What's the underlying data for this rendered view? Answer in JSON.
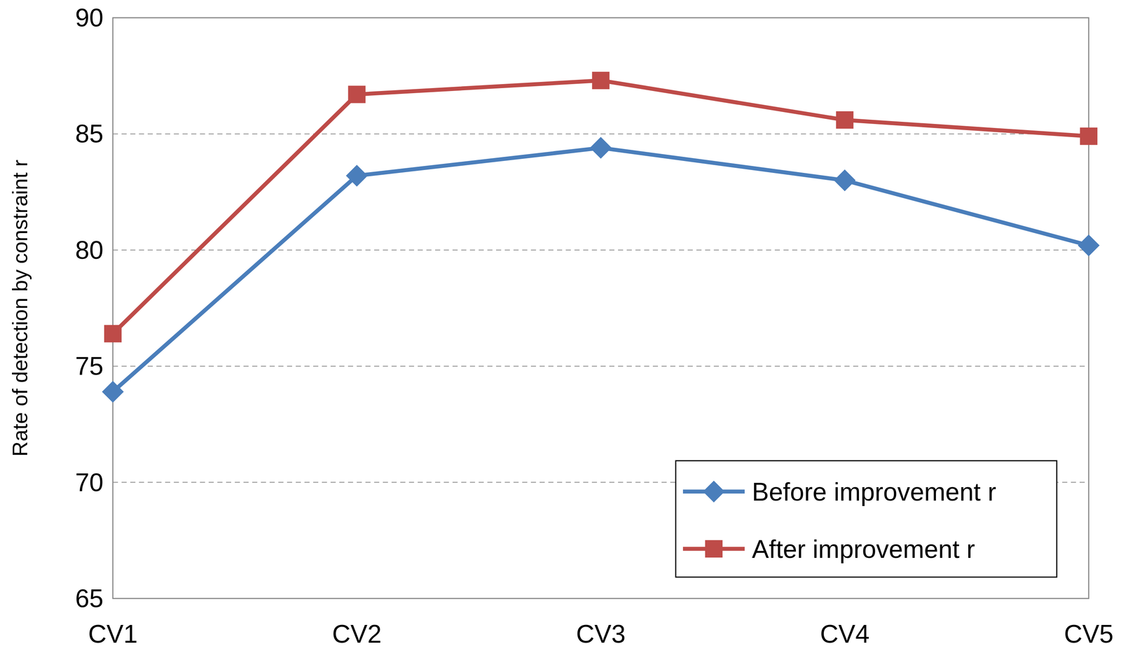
{
  "chart_data": {
    "type": "line",
    "y_label": "Rate of detection by constraint r",
    "categories": [
      "CV1",
      "CV2",
      "CV3",
      "CV4",
      "CV5"
    ],
    "series": [
      {
        "name": "Before improvement r",
        "color": "#4a7ebb",
        "marker": "diamond",
        "values": [
          73.9,
          83.2,
          84.4,
          83.0,
          80.2
        ]
      },
      {
        "name": "After improvement r",
        "color": "#be4b48",
        "marker": "square",
        "values": [
          76.4,
          86.7,
          87.3,
          85.6,
          84.9
        ]
      }
    ],
    "ylim": [
      65,
      90
    ],
    "yticks": [
      65,
      70,
      75,
      80,
      85,
      90
    ],
    "grid": true,
    "legend": "bottom right"
  }
}
